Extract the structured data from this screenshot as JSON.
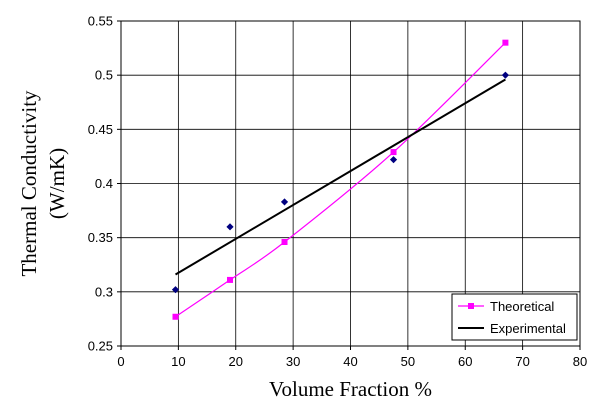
{
  "chart_data": {
    "type": "scatter",
    "xlabel": "Volume Fraction %",
    "ylabel_lines": [
      "Thermal Conductivity",
      "(W/mK)"
    ],
    "xlim": [
      0,
      80
    ],
    "ylim": [
      0.25,
      0.55
    ],
    "x_ticks": [
      "0",
      "10",
      "20",
      "30",
      "40",
      "50",
      "60",
      "70",
      "80"
    ],
    "y_ticks": [
      "0.25",
      "0.3",
      "0.35",
      "0.4",
      "0.45",
      "0.5",
      "0.55"
    ],
    "grid": true,
    "legend_position": "bottom-right",
    "series": [
      {
        "name": "Theoretical",
        "color": "#ff00ff",
        "marker": "square",
        "line": "smooth",
        "x": [
          9.5,
          19,
          28.5,
          47.5,
          67
        ],
        "y": [
          0.277,
          0.311,
          0.346,
          0.429,
          0.53
        ]
      },
      {
        "name": "Experimental",
        "color": "#000000",
        "marker_color": "#000080",
        "marker": "diamond",
        "line": "linear-fit",
        "x": [
          9.5,
          19,
          28.5,
          47.5,
          67
        ],
        "y": [
          0.302,
          0.36,
          0.383,
          0.422,
          0.5
        ],
        "fit_endpoints": {
          "x": [
            9.5,
            67
          ],
          "y": [
            0.316,
            0.496
          ]
        }
      }
    ]
  }
}
